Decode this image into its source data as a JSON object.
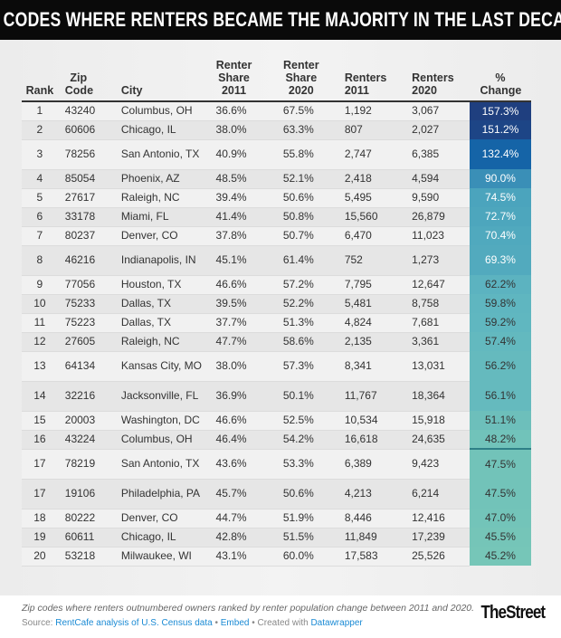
{
  "title": "ZIP CODES WHERE RENTERS BECAME THE MAJORITY IN THE LAST DECADE",
  "headers": {
    "rank": "Rank",
    "zip": "Zip Code",
    "city": "City",
    "share2011": "Renter Share 2011",
    "share2020": "Renter Share 2020",
    "renters2011": "Renters 2011",
    "renters2020": "Renters 2020",
    "change": "% Change"
  },
  "rows": [
    [
      "1",
      "43240",
      "Columbus, OH",
      "36.6%",
      "67.5%",
      "1,192",
      "3,067",
      "157.3%"
    ],
    [
      "2",
      "60606",
      "Chicago, IL",
      "38.0%",
      "63.3%",
      "807",
      "2,027",
      "151.2%"
    ],
    [
      "3",
      "78256",
      "San Antonio, TX",
      "40.9%",
      "55.8%",
      "2,747",
      "6,385",
      "132.4%"
    ],
    [
      "4",
      "85054",
      "Phoenix, AZ",
      "48.5%",
      "52.1%",
      "2,418",
      "4,594",
      "90.0%"
    ],
    [
      "5",
      "27617",
      "Raleigh, NC",
      "39.4%",
      "50.6%",
      "5,495",
      "9,590",
      "74.5%"
    ],
    [
      "6",
      "33178",
      "Miami, FL",
      "41.4%",
      "50.8%",
      "15,560",
      "26,879",
      "72.7%"
    ],
    [
      "7",
      "80237",
      "Denver, CO",
      "37.8%",
      "50.7%",
      "6,470",
      "11,023",
      "70.4%"
    ],
    [
      "8",
      "46216",
      "Indianapolis, IN",
      "45.1%",
      "61.4%",
      "752",
      "1,273",
      "69.3%"
    ],
    [
      "9",
      "77056",
      "Houston, TX",
      "46.6%",
      "57.2%",
      "7,795",
      "12,647",
      "62.2%"
    ],
    [
      "10",
      "75233",
      "Dallas, TX",
      "39.5%",
      "52.2%",
      "5,481",
      "8,758",
      "59.8%"
    ],
    [
      "11",
      "75223",
      "Dallas, TX",
      "37.7%",
      "51.3%",
      "4,824",
      "7,681",
      "59.2%"
    ],
    [
      "12",
      "27605",
      "Raleigh, NC",
      "47.7%",
      "58.6%",
      "2,135",
      "3,361",
      "57.4%"
    ],
    [
      "13",
      "64134",
      "Kansas City, MO",
      "38.0%",
      "57.3%",
      "8,341",
      "13,031",
      "56.2%"
    ],
    [
      "14",
      "32216",
      "Jacksonville, FL",
      "36.9%",
      "50.1%",
      "11,767",
      "18,364",
      "56.1%"
    ],
    [
      "15",
      "20003",
      "Washington, DC",
      "46.6%",
      "52.5%",
      "10,534",
      "15,918",
      "51.1%"
    ],
    [
      "16",
      "43224",
      "Columbus, OH",
      "46.4%",
      "54.2%",
      "16,618",
      "24,635",
      "48.2%"
    ],
    [
      "17",
      "78219",
      "San Antonio, TX",
      "43.6%",
      "53.3%",
      "6,389",
      "9,423",
      "47.5%"
    ],
    [
      "17",
      "19106",
      "Philadelphia, PA",
      "45.7%",
      "50.6%",
      "4,213",
      "6,214",
      "47.5%"
    ],
    [
      "18",
      "80222",
      "Denver, CO",
      "44.7%",
      "51.9%",
      "8,446",
      "12,416",
      "47.0%"
    ],
    [
      "19",
      "60611",
      "Chicago, IL",
      "42.8%",
      "51.5%",
      "11,849",
      "17,239",
      "45.5%"
    ],
    [
      "20",
      "53218",
      "Milwaukee, WI",
      "43.1%",
      "60.0%",
      "17,583",
      "25,526",
      "45.2%"
    ]
  ],
  "footer": {
    "note": "Zip codes where renters outnumbered owners ranked by renter population change between 2011 and 2020.",
    "source_label": "Source:",
    "source_link": "RentCafe analysis of U.S. Census data",
    "sep": "•",
    "embed": "Embed",
    "created": "Created with",
    "datawrapper": "Datawrapper",
    "logo": "TheStreet"
  },
  "colors": {
    "title_bg": "#0a0a0a",
    "scale_high": "#1f3f7f",
    "scale_mid": "#3a8fb7",
    "scale_low": "#76c6b8"
  }
}
